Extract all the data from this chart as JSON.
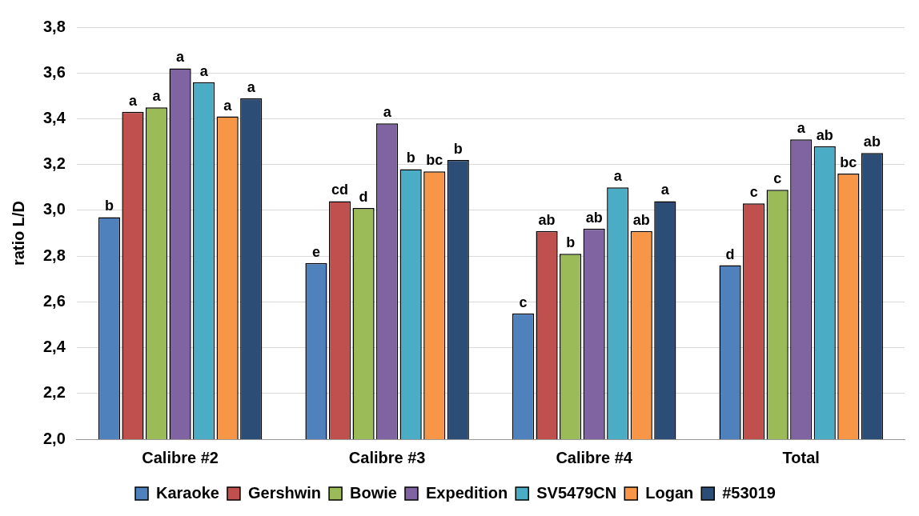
{
  "chart_data": {
    "type": "bar",
    "ylabel": "ratio L/D",
    "categories": [
      "Calibre #2",
      "Calibre #3",
      "Calibre #4",
      "Total"
    ],
    "ylim": [
      2.0,
      3.8
    ],
    "yticks": [
      {
        "value": 2.0,
        "label": "2,0"
      },
      {
        "value": 2.2,
        "label": "2,2"
      },
      {
        "value": 2.4,
        "label": "2,4"
      },
      {
        "value": 2.6,
        "label": "2,6"
      },
      {
        "value": 2.8,
        "label": "2,8"
      },
      {
        "value": 3.0,
        "label": "3,0"
      },
      {
        "value": 3.2,
        "label": "3,2"
      },
      {
        "value": 3.4,
        "label": "3,4"
      },
      {
        "value": 3.6,
        "label": "3,6"
      },
      {
        "value": 3.8,
        "label": "3,8"
      }
    ],
    "grid": "y",
    "legend": "bottom",
    "series": [
      {
        "name": "Karaoke",
        "color": "#4f81bd",
        "values": [
          2.97,
          2.77,
          2.55,
          2.76
        ],
        "value_labels": [
          "b",
          "e",
          "c",
          "d"
        ]
      },
      {
        "name": "Gershwin",
        "color": "#c0504d",
        "values": [
          3.43,
          3.04,
          2.91,
          3.03
        ],
        "value_labels": [
          "a",
          "cd",
          "ab",
          "c"
        ]
      },
      {
        "name": "Bowie",
        "color": "#9bbb59",
        "values": [
          3.45,
          3.01,
          2.81,
          3.09
        ],
        "value_labels": [
          "a",
          "d",
          "b",
          "c"
        ]
      },
      {
        "name": "Expedition",
        "color": "#8064a2",
        "values": [
          3.62,
          3.38,
          2.92,
          3.31
        ],
        "value_labels": [
          "a",
          "a",
          "ab",
          "a"
        ]
      },
      {
        "name": "SV5479CN",
        "color": "#4bacc6",
        "values": [
          3.56,
          3.18,
          3.1,
          3.28
        ],
        "value_labels": [
          "a",
          "b",
          "a",
          "ab"
        ]
      },
      {
        "name": "Logan",
        "color": "#f79646",
        "values": [
          3.41,
          3.17,
          2.91,
          3.16
        ],
        "value_labels": [
          "a",
          "bc",
          "ab",
          "bc"
        ]
      },
      {
        "name": "#53019",
        "color": "#2c4d75",
        "values": [
          3.49,
          3.22,
          3.04,
          3.25
        ],
        "value_labels": [
          "a",
          "b",
          "a",
          "ab"
        ]
      }
    ]
  }
}
